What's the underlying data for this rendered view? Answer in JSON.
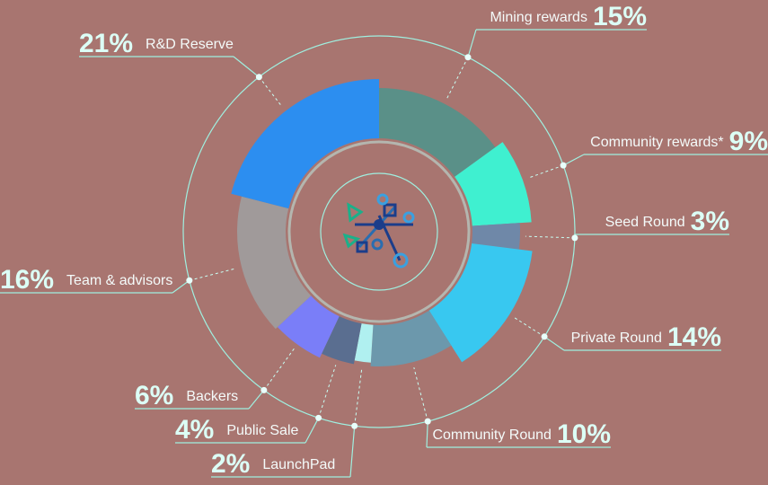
{
  "chart_data": {
    "type": "donut",
    "categories": [
      "Mining rewards",
      "Community rewards*",
      "Seed Round",
      "Private Round",
      "Community Round",
      "LaunchPad",
      "Public Sale",
      "Backers",
      "Team & advisors",
      "R&D Reserve"
    ],
    "values": [
      15,
      9,
      3,
      14,
      10,
      2,
      4,
      6,
      16,
      21
    ],
    "value_labels": [
      "15%",
      "9%",
      "3%",
      "14%",
      "10%",
      "2%",
      "4%",
      "6%",
      "16%",
      "21%"
    ],
    "colors": [
      "#5a9088",
      "#3ff0d0",
      "#6f88a8",
      "#38c8f0",
      "#6c98ac",
      "#b0f0f0",
      "#5a6e90",
      "#7a7ef8",
      "#a09a9a",
      "#2c8ef0"
    ]
  }
}
